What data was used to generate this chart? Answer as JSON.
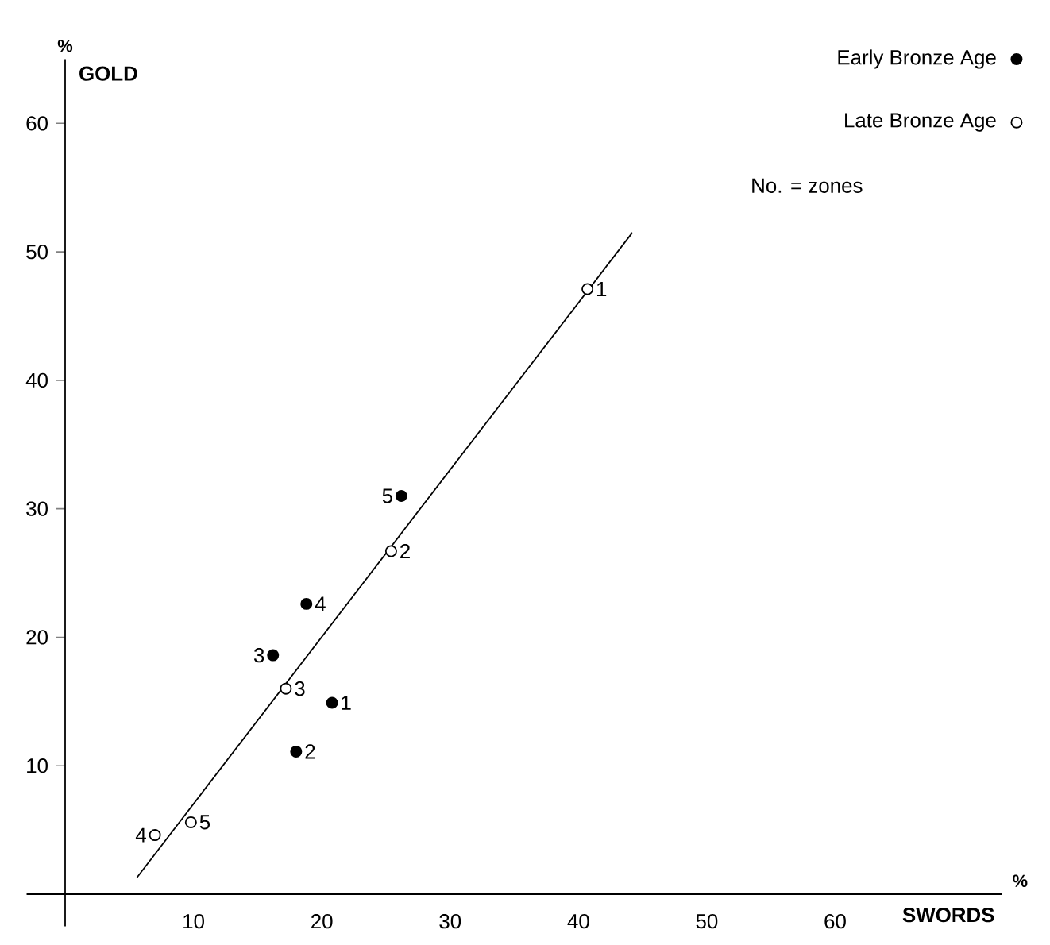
{
  "chart_data": {
    "type": "scatter",
    "xlabel": "SWORDS",
    "ylabel": "GOLD",
    "xlim": [
      -3,
      73
    ],
    "ylim": [
      -2.5,
      65
    ],
    "xticks": [
      10,
      20,
      30,
      40,
      50,
      60
    ],
    "yticks": [
      10,
      20,
      30,
      40,
      50,
      60
    ],
    "legend": "top right",
    "marker": "circle",
    "grid": false,
    "series": [
      {
        "name": "Early Bronze Age",
        "color": "#000000",
        "x": [
          20.8,
          18.0,
          16.2,
          18.8,
          26.2
        ],
        "values": [
          14.9,
          11.1,
          18.6,
          22.6,
          31.0
        ]
      },
      {
        "name": "Late Bronze Age",
        "color": "#ffffff",
        "x": [
          40.7,
          25.4,
          17.2,
          7.0,
          9.8
        ],
        "values": [
          47.1,
          26.7,
          16.0,
          4.6,
          5.6
        ]
      },
      {
        "type": "line",
        "color": "#000000",
        "marker": "none",
        "x": [
          5.6,
          44.2
        ],
        "values": [
          1.3,
          51.5
        ]
      }
    ],
    "annotations": [
      "No. = zones",
      "%",
      "%",
      {
        "text": "1",
        "x": 20.8,
        "y": 14.9
      },
      {
        "text": "2",
        "x": 18.0,
        "y": 11.1
      },
      {
        "text": "3",
        "x": 16.2,
        "y": 18.6
      },
      {
        "text": "4",
        "x": 18.8,
        "y": 22.6
      },
      {
        "text": "5",
        "x": 26.2,
        "y": 31.0
      },
      {
        "text": "1",
        "x": 40.7,
        "y": 47.1
      },
      {
        "text": "2",
        "x": 25.4,
        "y": 26.7
      },
      {
        "text": "3",
        "x": 17.2,
        "y": 16.0
      },
      {
        "text": "4",
        "x": 7.0,
        "y": 4.6
      },
      {
        "text": "5",
        "x": 9.8,
        "y": 5.6
      }
    ]
  }
}
